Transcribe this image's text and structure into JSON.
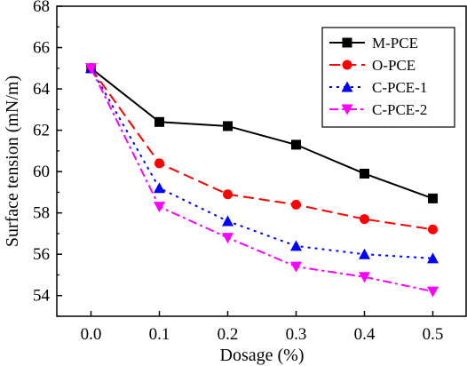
{
  "chart_data": {
    "type": "line",
    "title": "",
    "xlabel": "Dosage (%)",
    "ylabel": "Surface tension (mN/m)",
    "x": [
      0.0,
      0.1,
      0.2,
      0.3,
      0.4,
      0.5
    ],
    "x_tick_labels": [
      "0.0",
      "0.1",
      "0.2",
      "0.3",
      "0.4",
      "0.5"
    ],
    "xlim": [
      -0.05,
      0.55
    ],
    "ylim": [
      53,
      68
    ],
    "y_ticks": [
      54,
      56,
      58,
      60,
      62,
      64,
      66,
      68
    ],
    "y_tick_labels": [
      "54",
      "56",
      "58",
      "60",
      "62",
      "64",
      "66",
      "68"
    ],
    "grid": false,
    "legend_position": "top-right",
    "series": [
      {
        "name": "M-PCE",
        "color": "#000000",
        "line_style": "solid",
        "marker": "square",
        "values": [
          65.0,
          62.4,
          62.2,
          61.3,
          59.9,
          58.7
        ]
      },
      {
        "name": "O-PCE",
        "color": "#ff0000",
        "line_style": "dashed",
        "marker": "circle",
        "values": [
          65.0,
          60.4,
          58.9,
          58.4,
          57.7,
          57.2
        ]
      },
      {
        "name": "C-PCE-1",
        "color": "#0000ff",
        "line_style": "dotted",
        "marker": "triangle-up",
        "values": [
          65.0,
          59.2,
          57.6,
          56.4,
          56.0,
          55.8
        ]
      },
      {
        "name": "C-PCE-2",
        "color": "#ff00ff",
        "line_style": "dash-dot",
        "marker": "triangle-down",
        "values": [
          65.0,
          58.3,
          56.8,
          55.4,
          54.9,
          54.2
        ]
      }
    ]
  }
}
